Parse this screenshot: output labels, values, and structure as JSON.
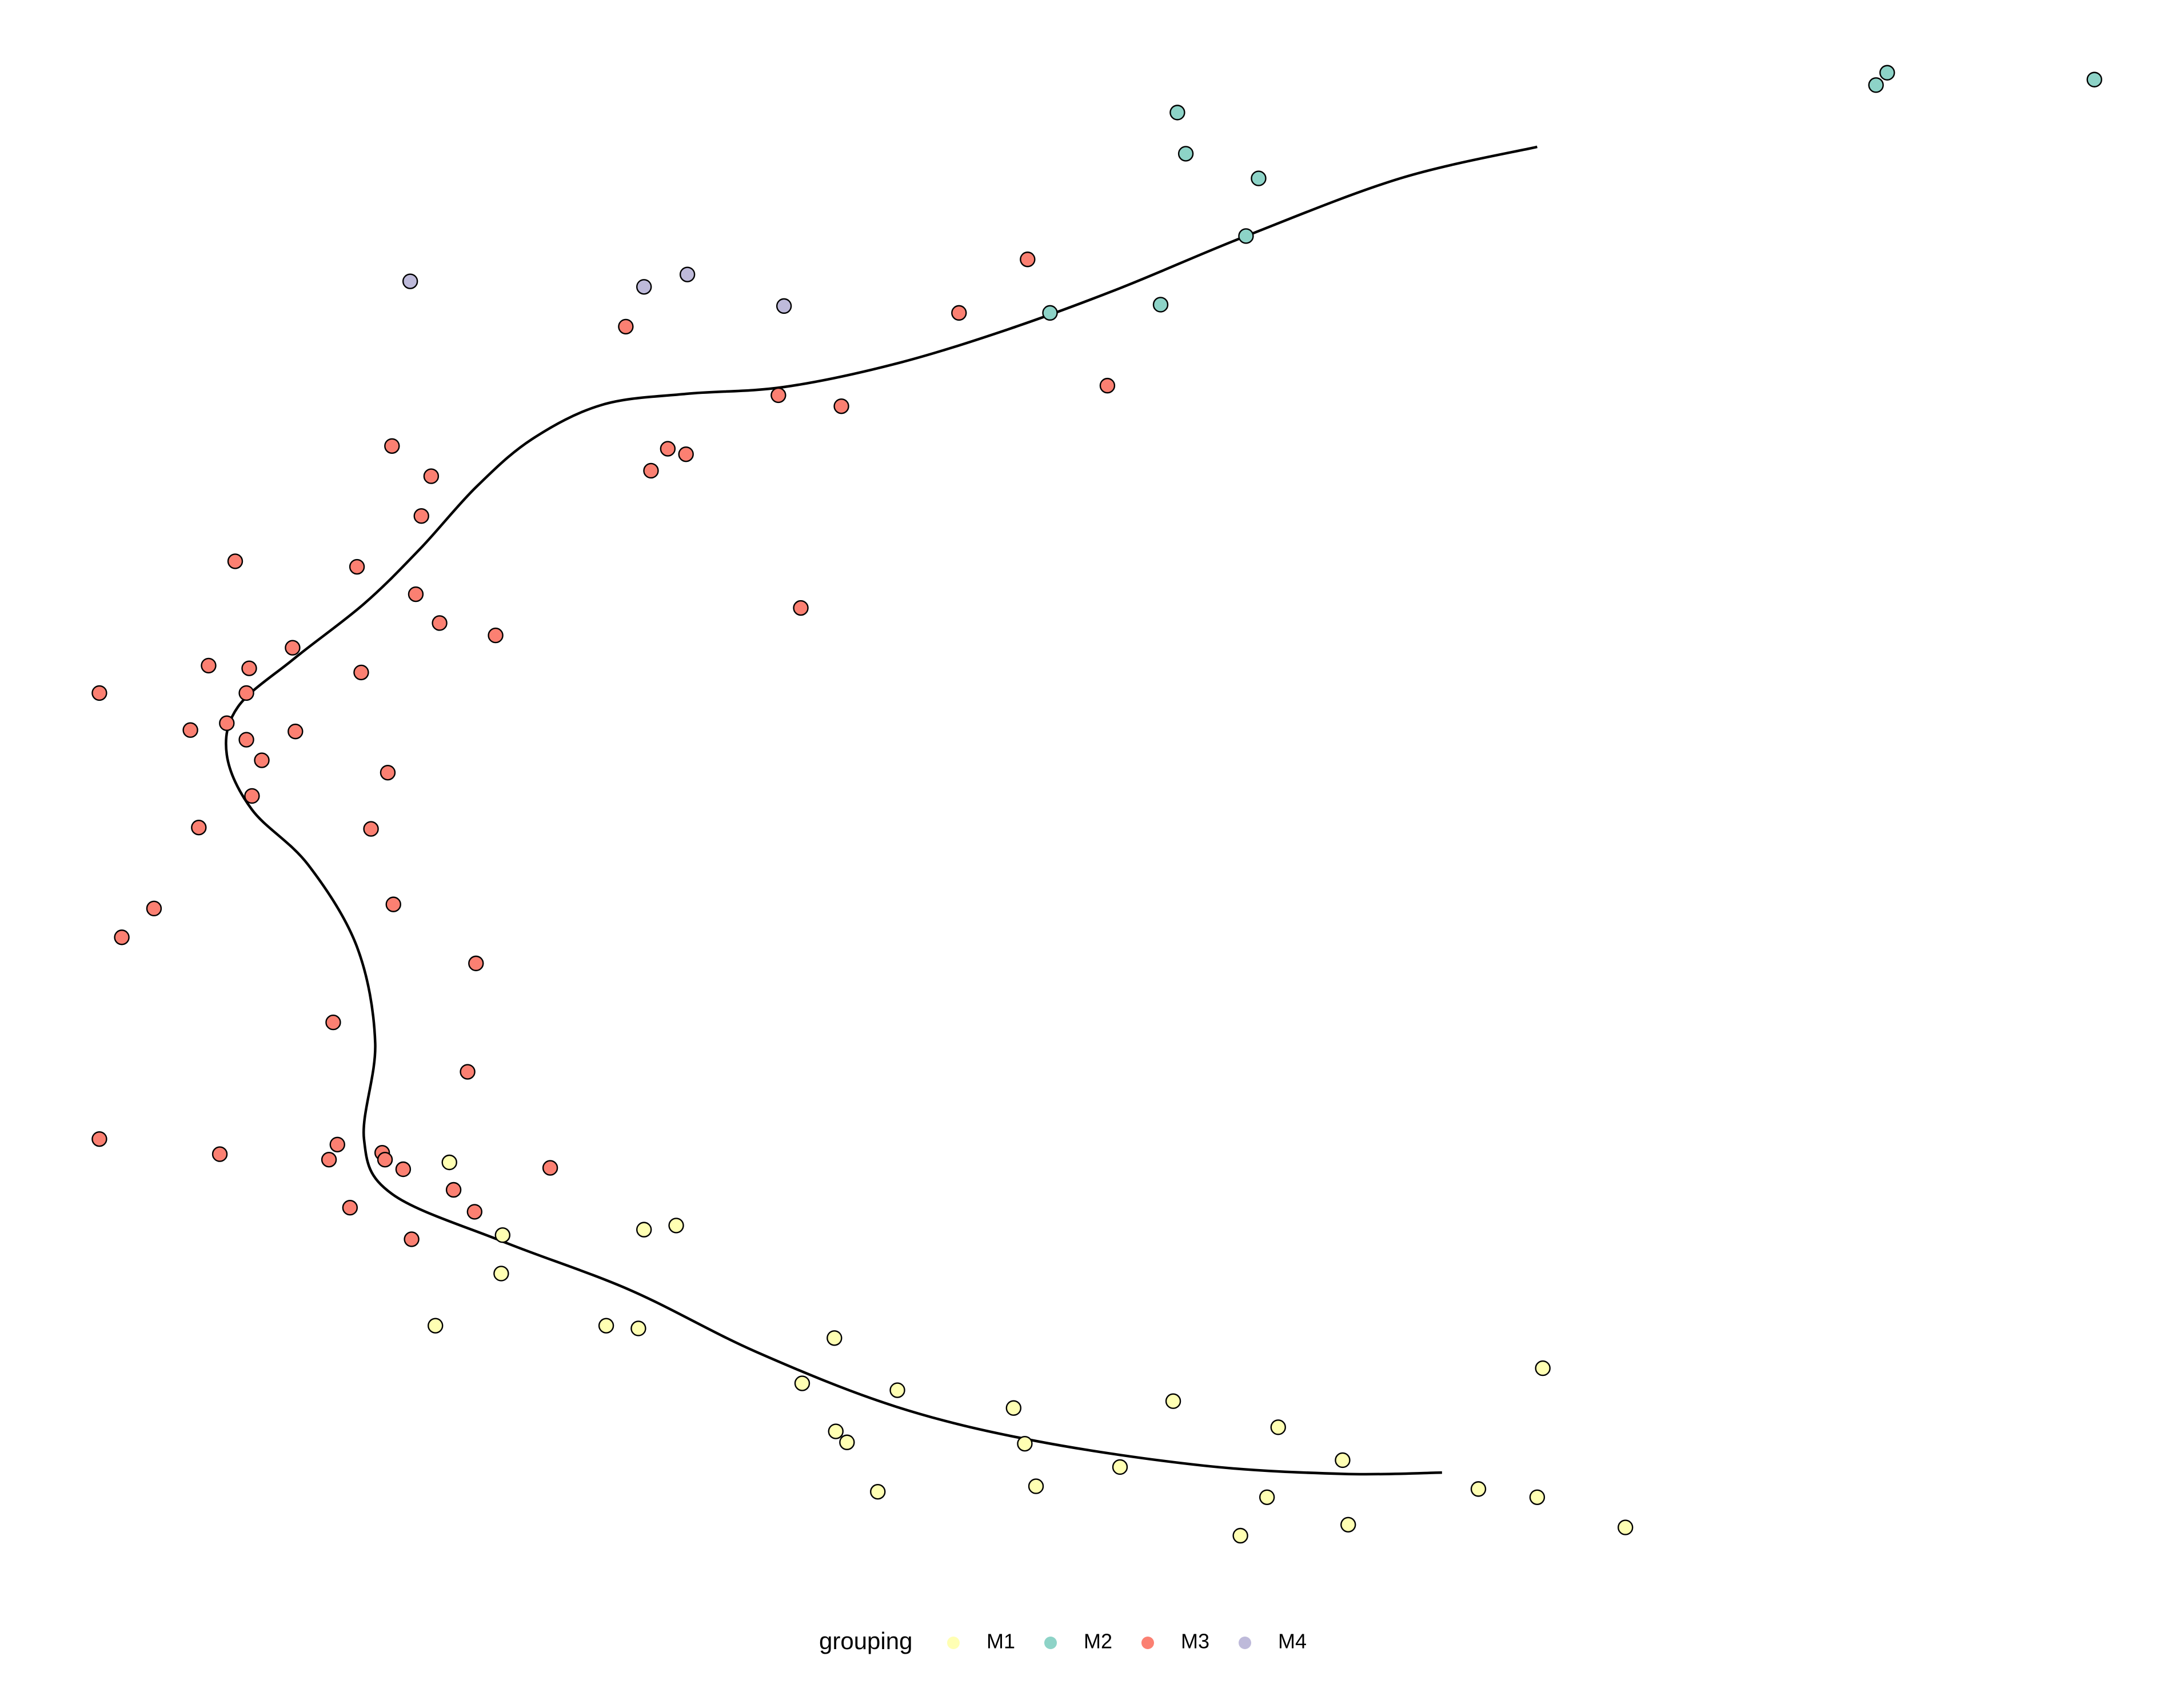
{
  "chart_data": {
    "type": "scatter",
    "legend_title": "grouping",
    "legend": "bottom",
    "xlim": [
      0,
      1560
    ],
    "ylim": [
      0,
      1230
    ],
    "series": [
      {
        "name": "M1",
        "color": "#ffffb3",
        "x": [
          321,
          359,
          358,
          460,
          483,
          311,
          433,
          456,
          596,
          573,
          641,
          724,
          597,
          605,
          732,
          838,
          913,
          800,
          740,
          627,
          959,
          905,
          886,
          963,
          1056,
          1098,
          1161,
          1102
        ],
        "y": [
          383,
          330,
          302,
          334,
          337,
          264,
          264,
          262,
          255,
          222,
          217,
          204,
          187,
          179,
          178,
          209,
          190,
          161,
          147,
          143,
          166,
          139,
          111,
          119,
          145,
          139,
          117,
          233
        ]
      },
      {
        "name": "M2",
        "color": "#8dd3c7",
        "x": [
          841,
          847,
          899,
          890,
          829,
          750,
          1340,
          1348,
          1496
        ],
        "y": [
          1148,
          1118,
          1100,
          1058,
          1008,
          1002,
          1168,
          1177,
          1172
        ]
      },
      {
        "name": "M3",
        "color": "#fb8072",
        "x": [
          734,
          685,
          447,
          791,
          556,
          601,
          280,
          477,
          490,
          465,
          308,
          301,
          168,
          255,
          297,
          572,
          314,
          354,
          209,
          149,
          178,
          258,
          176,
          71,
          136,
          162,
          211,
          176,
          187,
          277,
          180,
          142,
          265,
          110,
          281,
          87,
          340,
          238,
          334,
          71,
          157,
          241,
          235,
          273,
          275,
          288,
          393,
          324,
          250,
          339,
          294
        ],
        "y": [
          1041,
          1002,
          992,
          949,
          942,
          934,
          905,
          903,
          899,
          887,
          883,
          854,
          821,
          817,
          797,
          787,
          776,
          767,
          758,
          745,
          743,
          740,
          725,
          725,
          698,
          703,
          697,
          691,
          676,
          667,
          650,
          627,
          626,
          568,
          571,
          547,
          528,
          485,
          449,
          400,
          389,
          396,
          385,
          390,
          385,
          378,
          379,
          363,
          350,
          347,
          327
        ]
      },
      {
        "name": "M4",
        "color": "#bebada",
        "x": [
          293,
          460,
          491,
          560
        ],
        "y": [
          1025,
          1021,
          1030,
          1007
        ]
      }
    ],
    "curve": {
      "color": "#000000",
      "x": [
        1098,
        1000,
        890,
        800,
        720,
        640,
        560,
        490,
        430,
        380,
        340,
        300,
        260,
        210,
        170,
        162,
        180,
        220,
        255,
        268,
        260,
        280,
        360,
        450,
        540,
        640,
        740,
        860,
        960,
        1030
      ],
      "y": [
        1123,
        1100,
        1058,
        1020,
        990,
        965,
        948,
        943,
        935,
        910,
        875,
        830,
        790,
        750,
        715,
        680,
        640,
        600,
        540,
        470,
        400,
        360,
        325,
        290,
        245,
        205,
        180,
        162,
        156,
        157
      ]
    }
  }
}
